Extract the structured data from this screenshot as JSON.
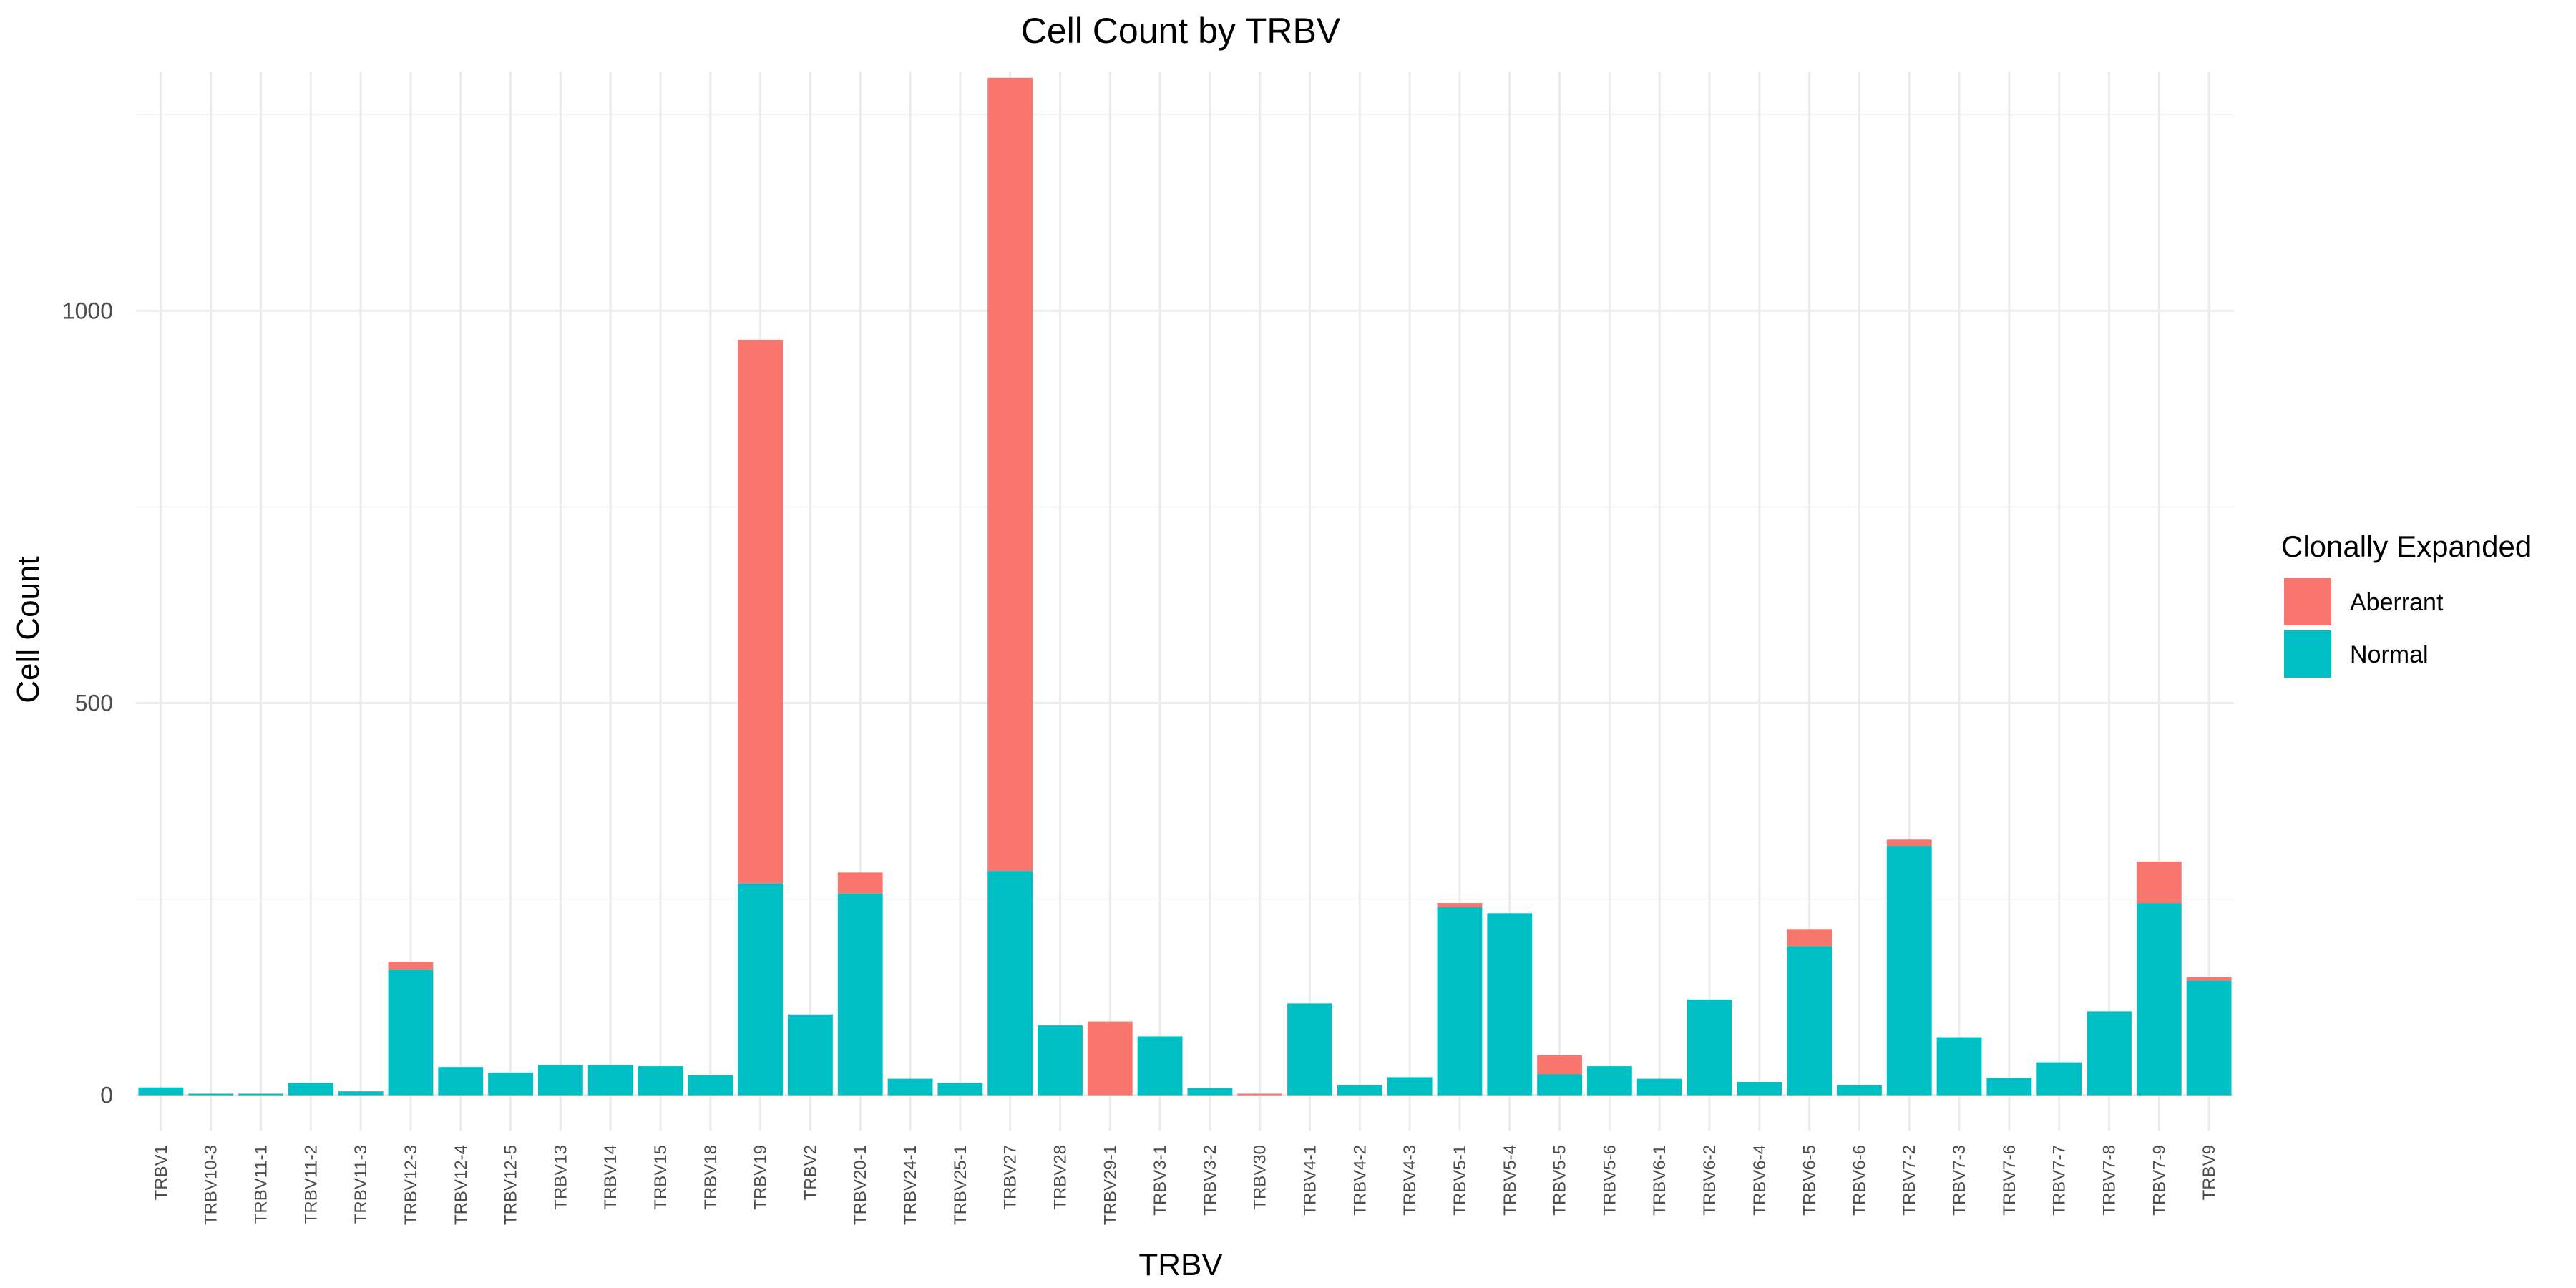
{
  "chart_data": {
    "type": "bar",
    "stacked": true,
    "title": "Cell Count by TRBV",
    "xlabel": "TRBV",
    "ylabel": "Cell Count",
    "ylim": [
      -45,
      1305
    ],
    "y_ticks": [
      0,
      500,
      1000
    ],
    "y_tick_labels": [
      "0",
      "500",
      "1000"
    ],
    "grid": true,
    "legend": {
      "title": "Clonally Expanded",
      "position": "right"
    },
    "categories": [
      "TRBV1",
      "TRBV10-3",
      "TRBV11-1",
      "TRBV11-2",
      "TRBV11-3",
      "TRBV12-3",
      "TRBV12-4",
      "TRBV12-5",
      "TRBV13",
      "TRBV14",
      "TRBV15",
      "TRBV18",
      "TRBV19",
      "TRBV2",
      "TRBV20-1",
      "TRBV24-1",
      "TRBV25-1",
      "TRBV27",
      "TRBV28",
      "TRBV29-1",
      "TRBV3-1",
      "TRBV3-2",
      "TRBV30",
      "TRBV4-1",
      "TRBV4-2",
      "TRBV4-3",
      "TRBV5-1",
      "TRBV5-4",
      "TRBV5-5",
      "TRBV5-6",
      "TRBV6-1",
      "TRBV6-2",
      "TRBV6-4",
      "TRBV6-5",
      "TRBV6-6",
      "TRBV7-2",
      "TRBV7-3",
      "TRBV7-6",
      "TRBV7-7",
      "TRBV7-8",
      "TRBV7-9",
      "TRBV9"
    ],
    "series": [
      {
        "name": "Normal",
        "color": "#00BFC4",
        "values": [
          10,
          2,
          2,
          16,
          5,
          160,
          36,
          29,
          39,
          39,
          37,
          26,
          270,
          103,
          257,
          21,
          16,
          286,
          89,
          0,
          75,
          9,
          0,
          117,
          13,
          23,
          240,
          232,
          27,
          37,
          21,
          122,
          17,
          190,
          13,
          318,
          74,
          22,
          42,
          107,
          245,
          146
        ]
      },
      {
        "name": "Aberrant",
        "color": "#F8766D",
        "values": [
          0,
          0,
          0,
          0,
          0,
          10,
          0,
          0,
          0,
          0,
          0,
          0,
          693,
          0,
          27,
          0,
          0,
          1011,
          0,
          94,
          0,
          0,
          2,
          0,
          0,
          0,
          5,
          0,
          24,
          0,
          0,
          0,
          0,
          22,
          0,
          8,
          0,
          0,
          0,
          0,
          53,
          5
        ]
      }
    ]
  }
}
